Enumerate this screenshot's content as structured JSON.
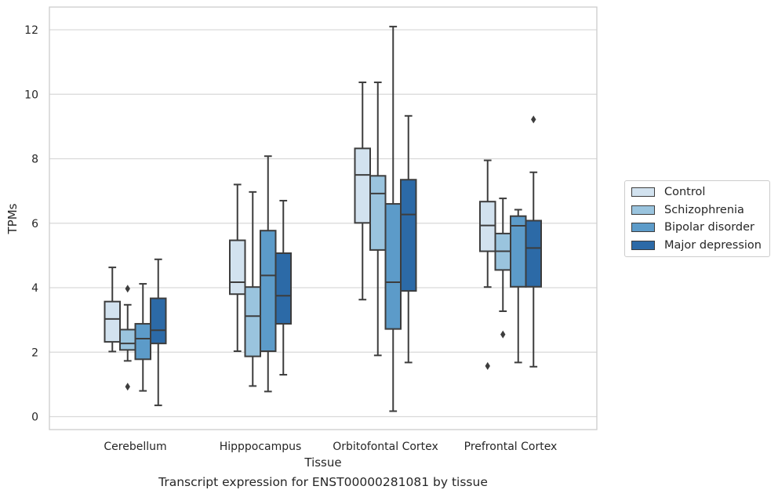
{
  "chart_data": {
    "type": "box",
    "xlabel": "Tissue",
    "ylabel": "TPMs",
    "caption": "Transcript expression for ENST00000281081 by tissue",
    "ylim": [
      -0.4,
      12.7
    ],
    "yticks": [
      0,
      2,
      4,
      6,
      8,
      10,
      12
    ],
    "grid": "horizontal",
    "legend_position": "right",
    "categories": [
      "Cerebellum",
      "Hipppocampus",
      "Orbitofontal Cortex",
      "Prefrontal Cortex"
    ],
    "series": [
      {
        "name": "Control",
        "color": "#d2e2ef",
        "boxes": [
          {
            "whislo": 2.02,
            "q1": 2.32,
            "med": 3.03,
            "q3": 3.57,
            "whishi": 4.63,
            "fliers": []
          },
          {
            "whislo": 2.03,
            "q1": 3.8,
            "med": 4.17,
            "q3": 5.47,
            "whishi": 7.2,
            "fliers": []
          },
          {
            "whislo": 3.63,
            "q1": 6.01,
            "med": 7.5,
            "q3": 8.32,
            "whishi": 10.37,
            "fliers": []
          },
          {
            "whislo": 4.02,
            "q1": 5.13,
            "med": 5.93,
            "q3": 6.67,
            "whishi": 7.95,
            "fliers": [
              1.57
            ]
          }
        ]
      },
      {
        "name": "Schizophrenia",
        "color": "#9ac4de",
        "boxes": [
          {
            "whislo": 1.73,
            "q1": 2.07,
            "med": 2.27,
            "q3": 2.7,
            "whishi": 3.47,
            "fliers": [
              3.97,
              0.93
            ]
          },
          {
            "whislo": 0.95,
            "q1": 1.87,
            "med": 3.12,
            "q3": 4.02,
            "whishi": 6.97,
            "fliers": []
          },
          {
            "whislo": 1.9,
            "q1": 5.17,
            "med": 6.92,
            "q3": 7.47,
            "whishi": 10.37,
            "fliers": []
          },
          {
            "whislo": 3.27,
            "q1": 4.55,
            "med": 5.13,
            "q3": 5.68,
            "whishi": 6.77,
            "fliers": [
              2.55
            ]
          }
        ]
      },
      {
        "name": "Bipolar disorder",
        "color": "#5c9bc9",
        "boxes": [
          {
            "whislo": 0.8,
            "q1": 1.78,
            "med": 2.42,
            "q3": 2.88,
            "whishi": 4.12,
            "fliers": []
          },
          {
            "whislo": 0.78,
            "q1": 2.03,
            "med": 4.38,
            "q3": 5.77,
            "whishi": 8.08,
            "fliers": []
          },
          {
            "whislo": 0.17,
            "q1": 2.72,
            "med": 4.17,
            "q3": 6.6,
            "whishi": 12.1,
            "fliers": []
          },
          {
            "whislo": 1.68,
            "q1": 4.03,
            "med": 5.92,
            "q3": 6.22,
            "whishi": 6.42,
            "fliers": []
          }
        ]
      },
      {
        "name": "Major depression",
        "color": "#2c6aa7",
        "boxes": [
          {
            "whislo": 0.35,
            "q1": 2.27,
            "med": 2.68,
            "q3": 3.67,
            "whishi": 4.88,
            "fliers": []
          },
          {
            "whislo": 1.3,
            "q1": 2.88,
            "med": 3.75,
            "q3": 5.07,
            "whishi": 6.7,
            "fliers": []
          },
          {
            "whislo": 1.68,
            "q1": 3.9,
            "med": 6.27,
            "q3": 7.35,
            "whishi": 9.33,
            "fliers": []
          },
          {
            "whislo": 1.55,
            "q1": 4.03,
            "med": 5.23,
            "q3": 6.08,
            "whishi": 7.58,
            "fliers": [
              9.22
            ]
          }
        ]
      }
    ]
  }
}
